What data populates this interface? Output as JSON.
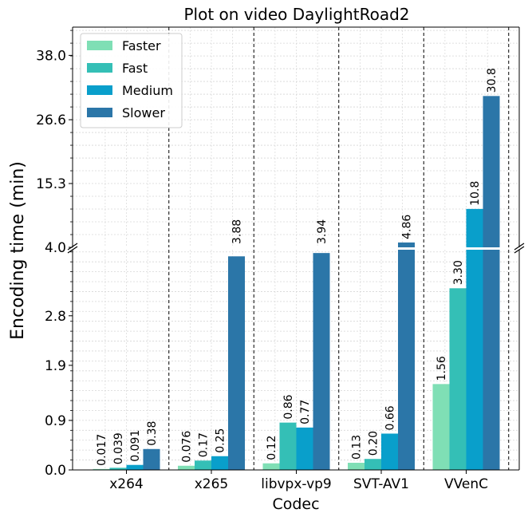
{
  "chart_data": {
    "type": "bar",
    "title": "Plot on video DaylightRoad2",
    "xlabel": "Codec",
    "ylabel": "Encoding time (min)",
    "categories": [
      "x264",
      "x265",
      "libvpx-vp9",
      "SVT-AV1",
      "VVenC"
    ],
    "series": [
      {
        "name": "Faster",
        "color": "#7fdfb5",
        "values": [
          0.017,
          0.076,
          0.12,
          0.13,
          1.56
        ],
        "labels": [
          "0.017",
          "0.076",
          "0.12",
          "0.13",
          "1.56"
        ]
      },
      {
        "name": "Fast",
        "color": "#34bfb6",
        "values": [
          0.039,
          0.17,
          0.86,
          0.2,
          3.3
        ],
        "labels": [
          "0.039",
          "0.17",
          "0.86",
          "0.20",
          "3.30"
        ]
      },
      {
        "name": "Medium",
        "color": "#099fcb",
        "values": [
          0.091,
          0.25,
          0.77,
          0.66,
          10.8
        ],
        "labels": [
          "0.091",
          "0.25",
          "0.77",
          "0.66",
          "10.8"
        ]
      },
      {
        "name": "Slower",
        "color": "#2b76a8",
        "values": [
          0.38,
          3.88,
          3.94,
          4.86,
          30.8
        ],
        "labels": [
          "0.38",
          "3.88",
          "3.94",
          "4.86",
          "30.8"
        ]
      }
    ],
    "y_axis": {
      "broken": true,
      "lower_range": [
        0,
        4.0
      ],
      "upper_range": [
        4.0,
        43.0
      ],
      "lower_ticks": [
        0.0,
        0.9,
        1.9,
        2.8
      ],
      "lower_tick_labels": [
        "0.0",
        "0.9",
        "1.9",
        "2.8"
      ],
      "upper_ticks": [
        4.0,
        15.3,
        26.6,
        38.0
      ],
      "upper_tick_labels": [
        "4.0",
        "15.3",
        "26.6",
        "38.0"
      ]
    },
    "grid": true,
    "legend_position": "top-left",
    "category_separators": "dashed"
  }
}
